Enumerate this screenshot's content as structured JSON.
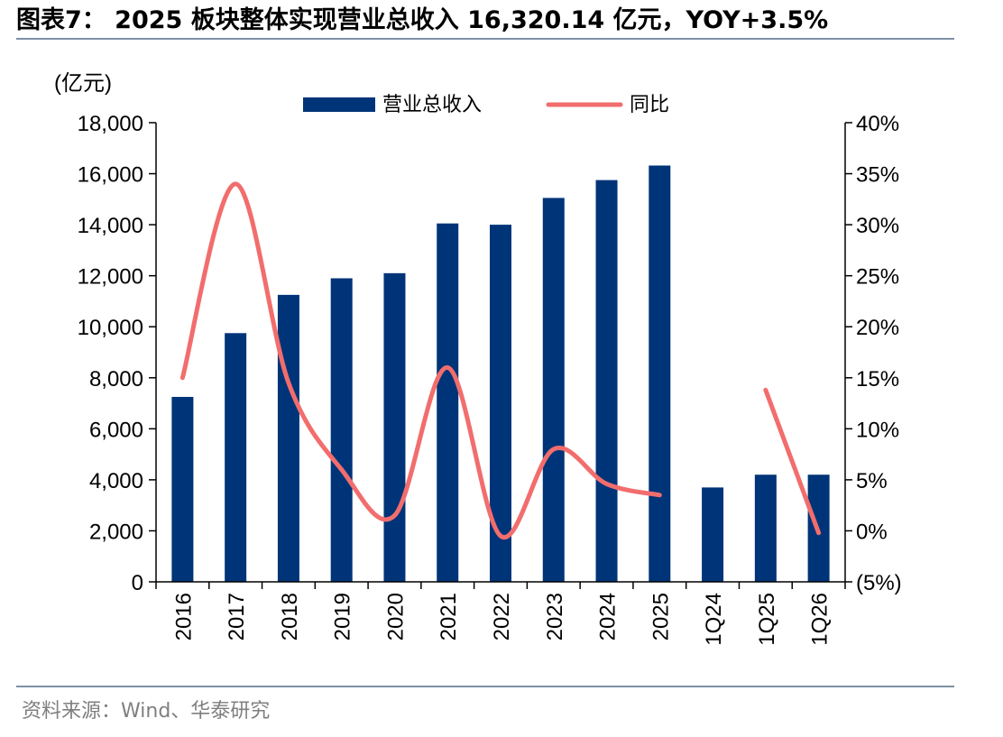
{
  "title": "图表7： 2025 板块整体实现营业总收入 16,320.14 亿元，YOY+3.5%",
  "source": "资料来源：Wind、华泰研究",
  "colors": {
    "bar": "#003478",
    "line": "#f26d6d",
    "rule": "#7f8fa6",
    "source_text": "#7f7f7f"
  },
  "chart_data": {
    "type": "bar",
    "categories": [
      "2016",
      "2017",
      "2018",
      "2019",
      "2020",
      "2021",
      "2022",
      "2023",
      "2024",
      "2025",
      "1Q24",
      "1Q25",
      "1Q26"
    ],
    "series": [
      {
        "name": "营业总收入",
        "type": "bar",
        "axis": "left",
        "values": [
          7250,
          9750,
          11250,
          11900,
          12100,
          14050,
          14000,
          15050,
          15750,
          16320.14,
          3700,
          4200,
          4200
        ]
      },
      {
        "name": "同比",
        "type": "line",
        "axis": "right",
        "segments": [
          [
            0,
            9
          ],
          [
            11,
            12
          ]
        ],
        "values": [
          15.0,
          34.0,
          14.5,
          6.0,
          1.5,
          16.0,
          -0.5,
          8.0,
          4.6,
          3.5,
          null,
          13.8,
          -0.2
        ]
      }
    ],
    "left_axis": {
      "label": "(亿元)",
      "ylim": [
        0,
        18000
      ],
      "ticks": [
        0,
        2000,
        4000,
        6000,
        8000,
        10000,
        12000,
        14000,
        16000,
        18000
      ],
      "tick_labels": [
        "0",
        "2,000",
        "4,000",
        "6,000",
        "8,000",
        "10,000",
        "12,000",
        "14,000",
        "16,000",
        "18,000"
      ]
    },
    "right_axis": {
      "ylim": [
        -5,
        40
      ],
      "ticks": [
        -5,
        0,
        5,
        10,
        15,
        20,
        25,
        30,
        35,
        40
      ],
      "tick_labels": [
        "(5%)",
        "0%",
        "5%",
        "10%",
        "15%",
        "20%",
        "25%",
        "30%",
        "35%",
        "40%"
      ]
    },
    "legend": {
      "position": "top-center",
      "items": [
        "营业总收入",
        "同比"
      ]
    },
    "grid": false
  }
}
